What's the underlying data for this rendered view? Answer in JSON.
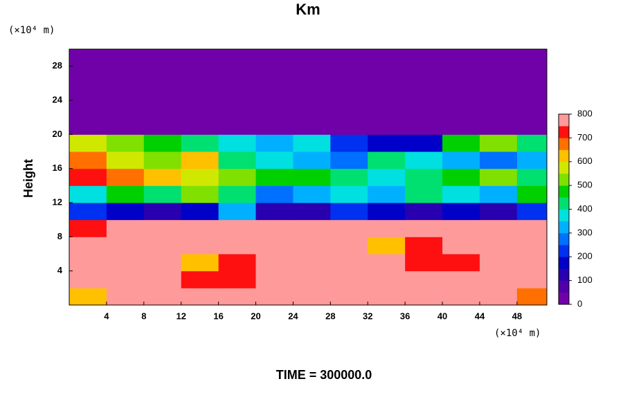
{
  "chart_data": {
    "type": "heatmap",
    "title": "Km",
    "y_unit_label": "(×10⁴ m)",
    "x_unit_label": "(×10⁴ m)",
    "ylabel": "Height",
    "footer": "TIME = 300000.0",
    "xlim": [
      0,
      51.2
    ],
    "ylim": [
      0,
      30
    ],
    "xticks": [
      4,
      8,
      12,
      16,
      20,
      24,
      28,
      32,
      36,
      40,
      44,
      48
    ],
    "yticks": [
      4,
      8,
      12,
      16,
      20,
      24,
      28
    ],
    "x_edges": [
      0,
      4,
      8,
      12,
      16,
      20,
      24,
      28,
      32,
      36,
      40,
      44,
      48,
      51.2
    ],
    "y_edges": [
      0,
      2,
      4,
      6,
      8,
      10,
      12,
      14,
      16,
      18,
      20,
      30
    ],
    "z": [
      [
        600,
        800,
        800,
        800,
        800,
        800,
        800,
        800,
        800,
        800,
        800,
        800,
        650
      ],
      [
        800,
        800,
        800,
        720,
        700,
        780,
        800,
        800,
        800,
        760,
        800,
        790,
        800
      ],
      [
        800,
        800,
        800,
        600,
        740,
        780,
        760,
        800,
        760,
        720,
        740,
        800,
        800
      ],
      [
        780,
        800,
        800,
        760,
        780,
        790,
        760,
        780,
        640,
        700,
        760,
        780,
        800
      ],
      [
        700,
        760,
        800,
        800,
        800,
        780,
        790,
        800,
        800,
        790,
        800,
        800,
        780
      ],
      [
        200,
        150,
        120,
        180,
        300,
        100,
        120,
        200,
        150,
        120,
        150,
        100,
        200
      ],
      [
        350,
        450,
        400,
        500,
        420,
        250,
        300,
        350,
        300,
        400,
        350,
        300,
        450
      ],
      [
        700,
        650,
        600,
        550,
        500,
        450,
        480,
        420,
        350,
        400,
        450,
        500,
        420
      ],
      [
        650,
        550,
        500,
        600,
        400,
        350,
        300,
        250,
        400,
        350,
        300,
        250,
        300
      ],
      [
        550,
        500,
        450,
        400,
        350,
        300,
        350,
        200,
        150,
        150,
        450,
        500,
        400
      ],
      [
        0,
        0,
        0,
        0,
        0,
        0,
        0,
        0,
        0,
        0,
        0,
        0,
        0
      ]
    ],
    "zlim": [
      0,
      800
    ],
    "colorbar_ticks": [
      0,
      100,
      200,
      300,
      400,
      500,
      600,
      700,
      800
    ],
    "colors": [
      "#7000a8",
      "#5000a8",
      "#2800b0",
      "#0000c8",
      "#0030f0",
      "#0070ff",
      "#00b0ff",
      "#00e0e0",
      "#00e070",
      "#00d000",
      "#80e000",
      "#d0e800",
      "#ffc000",
      "#ff7000",
      "#ff1010",
      "#ff9a9a"
    ]
  }
}
